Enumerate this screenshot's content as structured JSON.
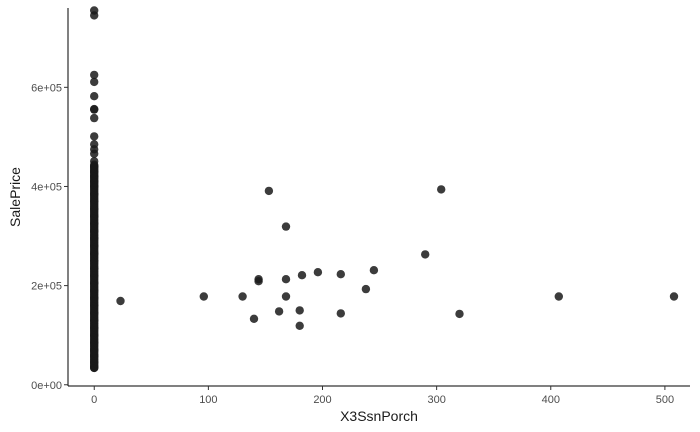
{
  "chart_data": {
    "type": "scatter",
    "title": "",
    "xlabel": "X3SsnPorch",
    "ylabel": "SalePrice",
    "xlim": [
      -23,
      522
    ],
    "ylim": [
      -2500,
      760000
    ],
    "x_ticks": [
      0,
      100,
      200,
      300,
      400,
      500
    ],
    "x_tick_labels": [
      "0",
      "100",
      "200",
      "300",
      "400",
      "500"
    ],
    "y_ticks": [
      0,
      200000,
      400000,
      600000
    ],
    "y_tick_labels": [
      "0e+00",
      "2e+05",
      "4e+05",
      "6e+05"
    ],
    "grid": false,
    "point_color": "#1a1a1a",
    "points": [
      {
        "x": 0,
        "y": 755000
      },
      {
        "x": 0,
        "y": 745000
      },
      {
        "x": 0,
        "y": 625000
      },
      {
        "x": 0,
        "y": 611000
      },
      {
        "x": 0,
        "y": 582000
      },
      {
        "x": 0,
        "y": 556000
      },
      {
        "x": 0,
        "y": 555000
      },
      {
        "x": 0,
        "y": 538000
      },
      {
        "x": 0,
        "y": 501000
      },
      {
        "x": 0,
        "y": 485000
      },
      {
        "x": 0,
        "y": 475000
      },
      {
        "x": 0,
        "y": 466000
      },
      {
        "x": 0,
        "y": 451000
      },
      {
        "x": 0,
        "y": 440000
      },
      {
        "x": 0,
        "y": 430000
      },
      {
        "x": 0,
        "y": 420000
      },
      {
        "x": 0,
        "y": 410000
      },
      {
        "x": 0,
        "y": 400000
      },
      {
        "x": 0,
        "y": 385000
      },
      {
        "x": 0,
        "y": 370000
      },
      {
        "x": 0,
        "y": 355000
      },
      {
        "x": 0,
        "y": 340000
      },
      {
        "x": 0,
        "y": 325000
      },
      {
        "x": 0,
        "y": 310000
      },
      {
        "x": 0,
        "y": 295000
      },
      {
        "x": 0,
        "y": 280000
      },
      {
        "x": 0,
        "y": 265000
      },
      {
        "x": 0,
        "y": 250000
      },
      {
        "x": 0,
        "y": 235000
      },
      {
        "x": 0,
        "y": 220000
      },
      {
        "x": 0,
        "y": 205000
      },
      {
        "x": 0,
        "y": 190000
      },
      {
        "x": 0,
        "y": 175000
      },
      {
        "x": 0,
        "y": 160000
      },
      {
        "x": 0,
        "y": 145000
      },
      {
        "x": 0,
        "y": 130000
      },
      {
        "x": 0,
        "y": 115000
      },
      {
        "x": 0,
        "y": 100000
      },
      {
        "x": 0,
        "y": 85000
      },
      {
        "x": 0,
        "y": 70000
      },
      {
        "x": 0,
        "y": 58000
      },
      {
        "x": 0,
        "y": 45000
      },
      {
        "x": 0,
        "y": 37000
      },
      {
        "x": 0,
        "y": 34000
      },
      {
        "x": 23,
        "y": 169000
      },
      {
        "x": 96,
        "y": 178000
      },
      {
        "x": 130,
        "y": 178000
      },
      {
        "x": 140,
        "y": 133000
      },
      {
        "x": 144,
        "y": 213000
      },
      {
        "x": 144,
        "y": 209000
      },
      {
        "x": 153,
        "y": 391000
      },
      {
        "x": 162,
        "y": 148000
      },
      {
        "x": 168,
        "y": 319000
      },
      {
        "x": 168,
        "y": 213000
      },
      {
        "x": 168,
        "y": 178000
      },
      {
        "x": 180,
        "y": 150000
      },
      {
        "x": 180,
        "y": 119000
      },
      {
        "x": 182,
        "y": 221000
      },
      {
        "x": 196,
        "y": 227000
      },
      {
        "x": 216,
        "y": 223000
      },
      {
        "x": 216,
        "y": 144000
      },
      {
        "x": 238,
        "y": 193000
      },
      {
        "x": 245,
        "y": 231000
      },
      {
        "x": 290,
        "y": 263000
      },
      {
        "x": 304,
        "y": 394000
      },
      {
        "x": 320,
        "y": 143000
      },
      {
        "x": 407,
        "y": 178000
      },
      {
        "x": 508,
        "y": 178000
      }
    ]
  }
}
